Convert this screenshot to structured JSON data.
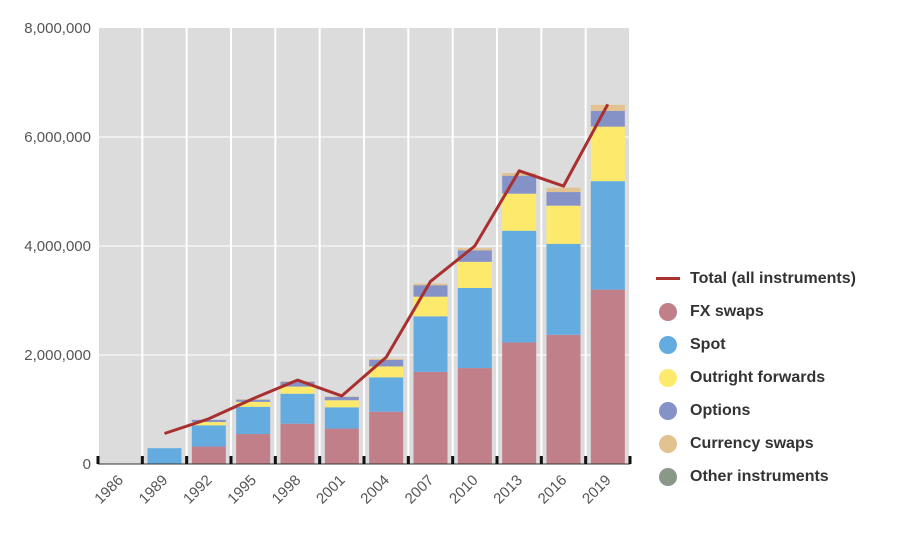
{
  "chart_data": {
    "type": "bar",
    "subtype": "stacked-bar-with-line",
    "categories": [
      "1986",
      "1989",
      "1992",
      "1995",
      "1998",
      "2001",
      "2004",
      "2007",
      "2010",
      "2013",
      "2016",
      "2019"
    ],
    "ylim": [
      0,
      8000000
    ],
    "yticks": [
      {
        "value": 0,
        "label": "0"
      },
      {
        "value": 2000000,
        "label": "2,000,000"
      },
      {
        "value": 4000000,
        "label": "4,000,000"
      },
      {
        "value": 6000000,
        "label": "6,000,000"
      },
      {
        "value": 8000000,
        "label": "8,000,000"
      }
    ],
    "grid": true,
    "legend_position": "right",
    "series": [
      {
        "name": "FX swaps",
        "color": "#c07f89",
        "values": [
          0,
          0,
          320000,
          550000,
          740000,
          650000,
          960000,
          1690000,
          1760000,
          2230000,
          2370000,
          3200000
        ]
      },
      {
        "name": "Spot",
        "color": "#64ace0",
        "values": [
          0,
          290000,
          390000,
          500000,
          550000,
          390000,
          630000,
          1020000,
          1470000,
          2050000,
          1670000,
          1990000
        ]
      },
      {
        "name": "Outright forwards",
        "color": "#fde96b",
        "values": [
          0,
          0,
          60000,
          90000,
          130000,
          130000,
          200000,
          360000,
          480000,
          680000,
          700000,
          1000000
        ]
      },
      {
        "name": "Options",
        "color": "#8592c8",
        "values": [
          0,
          0,
          40000,
          40000,
          90000,
          60000,
          120000,
          210000,
          210000,
          330000,
          250000,
          290000
        ]
      },
      {
        "name": "Currency swaps",
        "color": "#e2c290",
        "values": [
          0,
          0,
          0,
          10000,
          10000,
          10000,
          20000,
          30000,
          40000,
          50000,
          80000,
          110000
        ]
      },
      {
        "name": "Other instruments",
        "color": "#8a9888",
        "values": [
          0,
          0,
          0,
          0,
          0,
          0,
          0,
          0,
          0,
          0,
          0,
          0
        ]
      }
    ],
    "line": {
      "name": "Total (all instruments)",
      "color": "#a8302f",
      "values": [
        null,
        560000,
        830000,
        1200000,
        1540000,
        1250000,
        1960000,
        3350000,
        4000000,
        5380000,
        5100000,
        6600000
      ]
    }
  },
  "legend": [
    {
      "label": "Total (all instruments)",
      "color": "#a8302f",
      "kind": "line"
    },
    {
      "label": "FX swaps",
      "color": "#c07f89",
      "kind": "dot"
    },
    {
      "label": "Spot",
      "color": "#64ace0",
      "kind": "dot"
    },
    {
      "label": "Outright forwards",
      "color": "#fde96b",
      "kind": "dot"
    },
    {
      "label": "Options",
      "color": "#8592c8",
      "kind": "dot"
    },
    {
      "label": "Currency swaps",
      "color": "#e2c290",
      "kind": "dot"
    },
    {
      "label": "Other instruments",
      "color": "#8a9888",
      "kind": "dot"
    }
  ]
}
